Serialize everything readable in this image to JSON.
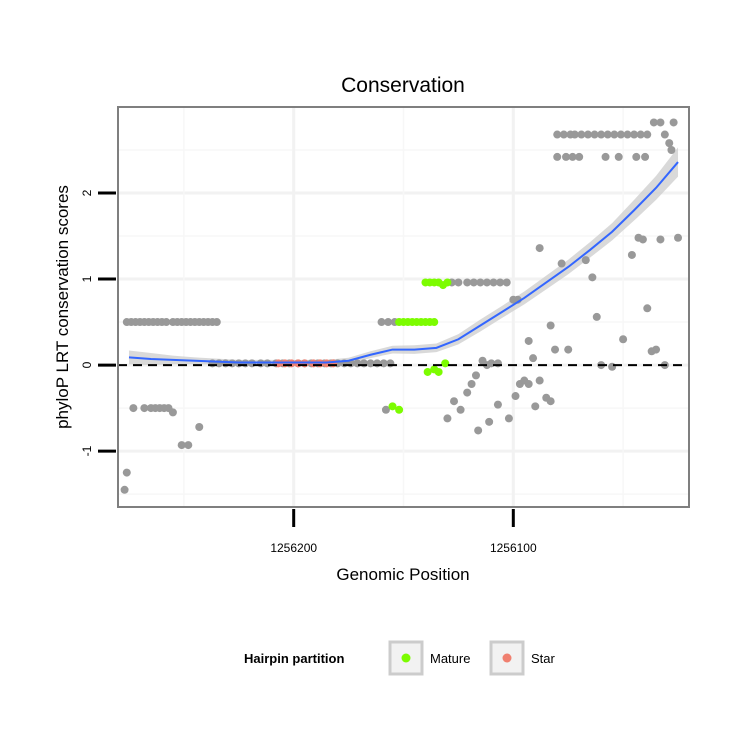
{
  "chart_data": {
    "type": "scatter",
    "title": "Conservation",
    "xlabel": "Genomic Position",
    "ylabel": "phyloP LRT conservation scores",
    "x_reversed": true,
    "xlim": [
      1256280,
      1256020
    ],
    "ylim": [
      -1.65,
      3.0
    ],
    "x_ticks": [
      1256200,
      1256100
    ],
    "x_tick_labels": [
      "1256200",
      "1256100"
    ],
    "y_ticks": [
      -1,
      0,
      1,
      2
    ],
    "y_tick_labels": [
      "-1",
      "0",
      "1",
      "2"
    ],
    "reference_line": {
      "y": 0,
      "style": "dashed"
    },
    "grid": true,
    "legend": {
      "title": "Hairpin partition",
      "position": "bottom",
      "entries": [
        {
          "label": "Mature",
          "color": "#7cfc00"
        },
        {
          "label": "Star",
          "color": "#f08070"
        }
      ]
    },
    "colors": {
      "other": "#999999",
      "mature": "#7cfc00",
      "star": "#f08070",
      "smooth": "#3366ff",
      "ribbon": "#cccccc"
    },
    "series": [
      {
        "name": "Other",
        "color": "#999999",
        "points": [
          [
            1256277,
            -1.45
          ],
          [
            1256276,
            -1.25
          ],
          [
            1256276,
            0.5
          ],
          [
            1256274,
            0.5
          ],
          [
            1256272,
            0.5
          ],
          [
            1256270,
            0.5
          ],
          [
            1256268,
            0.5
          ],
          [
            1256266,
            0.5
          ],
          [
            1256264,
            0.5
          ],
          [
            1256262,
            0.5
          ],
          [
            1256260,
            0.5
          ],
          [
            1256258,
            0.5
          ],
          [
            1256255,
            0.5
          ],
          [
            1256253,
            0.5
          ],
          [
            1256251,
            0.5
          ],
          [
            1256249,
            0.5
          ],
          [
            1256247,
            0.5
          ],
          [
            1256245,
            0.5
          ],
          [
            1256243,
            0.5
          ],
          [
            1256241,
            0.5
          ],
          [
            1256239,
            0.5
          ],
          [
            1256237,
            0.5
          ],
          [
            1256235,
            0.5
          ],
          [
            1256273,
            -0.5
          ],
          [
            1256268,
            -0.5
          ],
          [
            1256265,
            -0.5
          ],
          [
            1256263,
            -0.5
          ],
          [
            1256261,
            -0.5
          ],
          [
            1256259,
            -0.5
          ],
          [
            1256257,
            -0.5
          ],
          [
            1256255,
            -0.55
          ],
          [
            1256251,
            -0.93
          ],
          [
            1256248,
            -0.93
          ],
          [
            1256243,
            -0.72
          ],
          [
            1256237,
            0.02
          ],
          [
            1256234,
            0.02
          ],
          [
            1256231,
            0.02
          ],
          [
            1256228,
            0.02
          ],
          [
            1256225,
            0.02
          ],
          [
            1256222,
            0.02
          ],
          [
            1256219,
            0.02
          ],
          [
            1256215,
            0.02
          ],
          [
            1256212,
            0.02
          ],
          [
            1256208,
            0.02
          ],
          [
            1256205,
            0.02
          ],
          [
            1256202,
            0.02
          ],
          [
            1256198,
            0.02
          ],
          [
            1256195,
            0.02
          ],
          [
            1256192,
            0.02
          ],
          [
            1256189,
            0.02
          ],
          [
            1256186,
            0.02
          ],
          [
            1256183,
            0.02
          ],
          [
            1256180,
            0.02
          ],
          [
            1256177,
            0.02
          ],
          [
            1256174,
            0.02
          ],
          [
            1256171,
            0.02
          ],
          [
            1256168,
            0.02
          ],
          [
            1256165,
            0.02
          ],
          [
            1256162,
            0.02
          ],
          [
            1256159,
            0.02
          ],
          [
            1256156,
            0.02
          ],
          [
            1256160,
            0.5
          ],
          [
            1256157,
            0.5
          ],
          [
            1256154,
            0.5
          ],
          [
            1256158,
            -0.52
          ],
          [
            1256130,
            -0.62
          ],
          [
            1256127,
            -0.42
          ],
          [
            1256124,
            -0.52
          ],
          [
            1256121,
            -0.32
          ],
          [
            1256119,
            -0.22
          ],
          [
            1256117,
            -0.12
          ],
          [
            1256114,
            0.05
          ],
          [
            1256112,
            0.0
          ],
          [
            1256110,
            0.02
          ],
          [
            1256107,
            0.02
          ],
          [
            1256128,
            0.96
          ],
          [
            1256125,
            0.96
          ],
          [
            1256121,
            0.96
          ],
          [
            1256118,
            0.96
          ],
          [
            1256115,
            0.96
          ],
          [
            1256112,
            0.96
          ],
          [
            1256109,
            0.96
          ],
          [
            1256106,
            0.96
          ],
          [
            1256103,
            0.96
          ],
          [
            1256116,
            -0.76
          ],
          [
            1256111,
            -0.66
          ],
          [
            1256107,
            -0.46
          ],
          [
            1256102,
            -0.62
          ],
          [
            1256099,
            -0.36
          ],
          [
            1256097,
            -0.22
          ],
          [
            1256095,
            -0.18
          ],
          [
            1256093,
            -0.22
          ],
          [
            1256090,
            -0.48
          ],
          [
            1256088,
            -0.18
          ],
          [
            1256085,
            -0.38
          ],
          [
            1256083,
            -0.42
          ],
          [
            1256100,
            0.76
          ],
          [
            1256098,
            0.76
          ],
          [
            1256093,
            0.28
          ],
          [
            1256091,
            0.08
          ],
          [
            1256088,
            1.36
          ],
          [
            1256083,
            0.46
          ],
          [
            1256081,
            0.18
          ],
          [
            1256078,
            1.18
          ],
          [
            1256080,
            2.68
          ],
          [
            1256077,
            2.68
          ],
          [
            1256074,
            2.68
          ],
          [
            1256072,
            2.68
          ],
          [
            1256069,
            2.68
          ],
          [
            1256066,
            2.68
          ],
          [
            1256063,
            2.68
          ],
          [
            1256060,
            2.68
          ],
          [
            1256057,
            2.68
          ],
          [
            1256054,
            2.68
          ],
          [
            1256051,
            2.68
          ],
          [
            1256048,
            2.68
          ],
          [
            1256045,
            2.68
          ],
          [
            1256042,
            2.68
          ],
          [
            1256039,
            2.68
          ],
          [
            1256080,
            2.42
          ],
          [
            1256076,
            2.42
          ],
          [
            1256073,
            2.42
          ],
          [
            1256070,
            2.42
          ],
          [
            1256058,
            2.42
          ],
          [
            1256052,
            2.42
          ],
          [
            1256044,
            2.42
          ],
          [
            1256040,
            2.42
          ],
          [
            1256036,
            2.82
          ],
          [
            1256033,
            2.82
          ],
          [
            1256031,
            2.68
          ],
          [
            1256027,
            2.82
          ],
          [
            1256029,
            2.58
          ],
          [
            1256028,
            2.5
          ],
          [
            1256075,
            0.18
          ],
          [
            1256067,
            1.22
          ],
          [
            1256064,
            1.02
          ],
          [
            1256062,
            0.56
          ],
          [
            1256060,
            0.0
          ],
          [
            1256055,
            -0.02
          ],
          [
            1256050,
            0.3
          ],
          [
            1256046,
            1.28
          ],
          [
            1256043,
            1.48
          ],
          [
            1256041,
            1.46
          ],
          [
            1256039,
            0.66
          ],
          [
            1256037,
            0.16
          ],
          [
            1256035,
            0.18
          ],
          [
            1256033,
            1.46
          ],
          [
            1256031,
            0.0
          ],
          [
            1256025,
            1.48
          ]
        ]
      },
      {
        "name": "Mature",
        "color": "#7cfc00",
        "points": [
          [
            1256152,
            0.5
          ],
          [
            1256150,
            0.5
          ],
          [
            1256148,
            0.5
          ],
          [
            1256146,
            0.5
          ],
          [
            1256144,
            0.5
          ],
          [
            1256142,
            0.5
          ],
          [
            1256140,
            0.5
          ],
          [
            1256138,
            0.5
          ],
          [
            1256136,
            0.5
          ],
          [
            1256155,
            -0.48
          ],
          [
            1256152,
            -0.52
          ],
          [
            1256140,
            0.96
          ],
          [
            1256138,
            0.96
          ],
          [
            1256136,
            0.96
          ],
          [
            1256134,
            0.96
          ],
          [
            1256132,
            0.93
          ],
          [
            1256130,
            0.96
          ],
          [
            1256139,
            -0.08
          ],
          [
            1256136,
            -0.05
          ],
          [
            1256134,
            -0.08
          ],
          [
            1256131,
            0.02
          ]
        ]
      },
      {
        "name": "Star",
        "color": "#f08070",
        "points": [
          [
            1256207,
            0.02
          ],
          [
            1256204,
            0.02
          ],
          [
            1256201,
            0.02
          ],
          [
            1256198,
            0.02
          ],
          [
            1256195,
            0.02
          ],
          [
            1256191,
            0.02
          ],
          [
            1256188,
            0.02
          ],
          [
            1256185,
            0.02
          ],
          [
            1256182,
            0.02
          ]
        ]
      }
    ],
    "smooth": {
      "x": [
        1256275,
        1256265,
        1256255,
        1256245,
        1256235,
        1256225,
        1256215,
        1256205,
        1256195,
        1256185,
        1256175,
        1256165,
        1256155,
        1256145,
        1256135,
        1256125,
        1256115,
        1256105,
        1256095,
        1256085,
        1256075,
        1256065,
        1256055,
        1256045,
        1256035,
        1256025
      ],
      "y": [
        0.09,
        0.07,
        0.06,
        0.05,
        0.04,
        0.03,
        0.03,
        0.03,
        0.03,
        0.03,
        0.05,
        0.12,
        0.18,
        0.18,
        0.2,
        0.3,
        0.46,
        0.62,
        0.78,
        0.96,
        1.14,
        1.34,
        1.55,
        1.8,
        2.06,
        2.36
      ],
      "se": [
        0.08,
        0.07,
        0.05,
        0.04,
        0.035,
        0.03,
        0.03,
        0.03,
        0.03,
        0.03,
        0.035,
        0.04,
        0.045,
        0.05,
        0.05,
        0.06,
        0.07,
        0.07,
        0.075,
        0.08,
        0.085,
        0.09,
        0.1,
        0.12,
        0.14,
        0.17
      ]
    }
  }
}
